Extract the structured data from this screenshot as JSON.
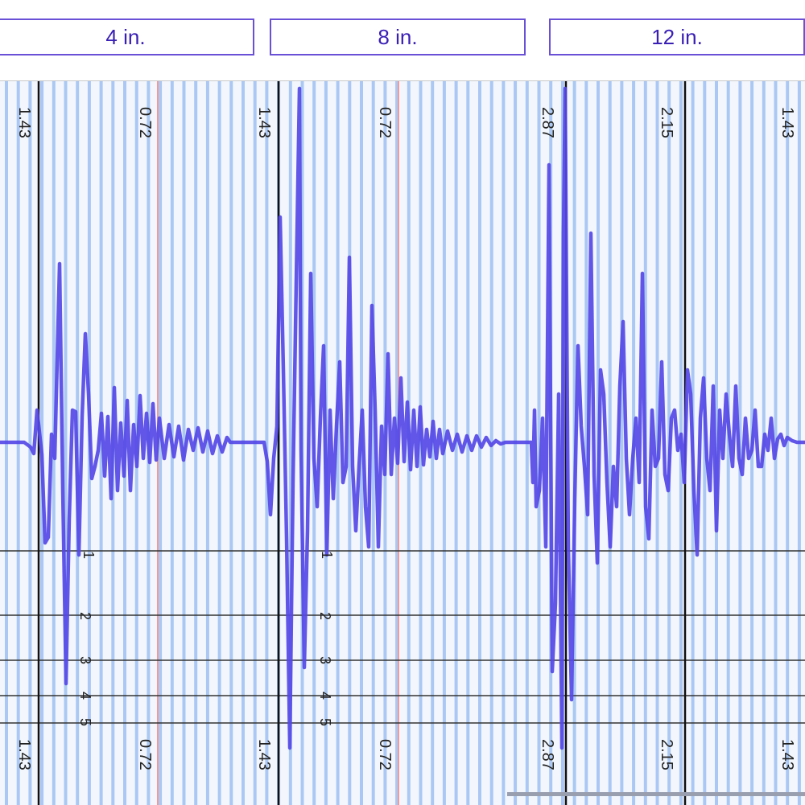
{
  "tabs": [
    {
      "label": "4 in."
    },
    {
      "label": "8 in."
    },
    {
      "label": "12 in."
    }
  ],
  "grid": {
    "top_labels": [
      "1.43",
      "0.72",
      "1.43",
      "0.72",
      "2.87",
      "2.15",
      "1.43"
    ],
    "bottom_labels": [
      "1.43",
      "0.72",
      "1.43",
      "0.72",
      "2.87",
      "2.15",
      "1.43"
    ],
    "level_numbers": [
      "1",
      "2",
      "3",
      "4",
      "5"
    ]
  },
  "colors": {
    "accent": "#6a50d6",
    "tab_text": "#3a1fb5",
    "waveform": "#5548e6",
    "stripe": "#aac8f3",
    "red_marker": "#f19a9a",
    "plot_bg": "#f3f7fd"
  },
  "waveform": {
    "name": "vibration-waveform",
    "samples": [
      [
        0,
        0
      ],
      [
        30,
        0
      ],
      [
        38,
        -6
      ],
      [
        42,
        -14
      ],
      [
        46,
        40
      ],
      [
        52,
        -15
      ],
      [
        56,
        -125
      ],
      [
        60,
        -118
      ],
      [
        64,
        10
      ],
      [
        68,
        -20
      ],
      [
        74,
        222
      ],
      [
        78,
        -60
      ],
      [
        82,
        -300
      ],
      [
        86,
        -95
      ],
      [
        90,
        40
      ],
      [
        94,
        38
      ],
      [
        98,
        -140
      ],
      [
        102,
        32
      ],
      [
        106,
        135
      ],
      [
        110,
        60
      ],
      [
        114,
        -45
      ],
      [
        118,
        -30
      ],
      [
        122,
        -10
      ],
      [
        126,
        36
      ],
      [
        130,
        -42
      ],
      [
        134,
        32
      ],
      [
        138,
        -70
      ],
      [
        142,
        68
      ],
      [
        146,
        -60
      ],
      [
        150,
        24
      ],
      [
        154,
        -42
      ],
      [
        158,
        52
      ],
      [
        162,
        -60
      ],
      [
        166,
        22
      ],
      [
        170,
        -30
      ],
      [
        174,
        58
      ],
      [
        178,
        -20
      ],
      [
        182,
        36
      ],
      [
        186,
        -25
      ],
      [
        190,
        48
      ],
      [
        194,
        -22
      ],
      [
        198,
        30
      ],
      [
        204,
        -20
      ],
      [
        210,
        22
      ],
      [
        216,
        -18
      ],
      [
        222,
        20
      ],
      [
        228,
        -22
      ],
      [
        234,
        16
      ],
      [
        240,
        -10
      ],
      [
        246,
        18
      ],
      [
        252,
        -12
      ],
      [
        258,
        14
      ],
      [
        264,
        -14
      ],
      [
        270,
        8
      ],
      [
        276,
        -12
      ],
      [
        282,
        6
      ],
      [
        286,
        0
      ],
      [
        328,
        0
      ],
      [
        332,
        -24
      ],
      [
        336,
        -90
      ],
      [
        340,
        -20
      ],
      [
        344,
        20
      ],
      [
        348,
        280
      ],
      [
        352,
        90
      ],
      [
        356,
        -120
      ],
      [
        360,
        -380
      ],
      [
        364,
        -48
      ],
      [
        368,
        200
      ],
      [
        372,
        440
      ],
      [
        374,
        -10
      ],
      [
        378,
        -280
      ],
      [
        382,
        -110
      ],
      [
        386,
        210
      ],
      [
        390,
        -20
      ],
      [
        394,
        -80
      ],
      [
        398,
        30
      ],
      [
        402,
        120
      ],
      [
        406,
        -140
      ],
      [
        410,
        40
      ],
      [
        414,
        -70
      ],
      [
        418,
        20
      ],
      [
        422,
        100
      ],
      [
        426,
        -50
      ],
      [
        430,
        -30
      ],
      [
        434,
        230
      ],
      [
        438,
        -30
      ],
      [
        442,
        -110
      ],
      [
        446,
        -30
      ],
      [
        450,
        40
      ],
      [
        454,
        -80
      ],
      [
        458,
        -130
      ],
      [
        462,
        170
      ],
      [
        466,
        40
      ],
      [
        470,
        -130
      ],
      [
        474,
        20
      ],
      [
        478,
        -40
      ],
      [
        482,
        110
      ],
      [
        486,
        -40
      ],
      [
        490,
        30
      ],
      [
        494,
        -26
      ],
      [
        498,
        80
      ],
      [
        502,
        -24
      ],
      [
        506,
        50
      ],
      [
        510,
        -34
      ],
      [
        514,
        40
      ],
      [
        518,
        -30
      ],
      [
        522,
        44
      ],
      [
        526,
        -28
      ],
      [
        530,
        16
      ],
      [
        534,
        -18
      ],
      [
        538,
        26
      ],
      [
        542,
        -20
      ],
      [
        546,
        16
      ],
      [
        550,
        -14
      ],
      [
        556,
        14
      ],
      [
        562,
        -10
      ],
      [
        568,
        10
      ],
      [
        574,
        -12
      ],
      [
        580,
        8
      ],
      [
        586,
        -10
      ],
      [
        592,
        8
      ],
      [
        598,
        -6
      ],
      [
        604,
        6
      ],
      [
        610,
        -4
      ],
      [
        616,
        2
      ],
      [
        622,
        -2
      ],
      [
        628,
        0
      ],
      [
        660,
        0
      ],
      [
        662,
        -50
      ],
      [
        664,
        40
      ],
      [
        666,
        -80
      ],
      [
        670,
        -60
      ],
      [
        674,
        30
      ],
      [
        678,
        -130
      ],
      [
        682,
        345
      ],
      [
        686,
        -285
      ],
      [
        690,
        -200
      ],
      [
        694,
        60
      ],
      [
        698,
        -380
      ],
      [
        700,
        260
      ],
      [
        702,
        440
      ],
      [
        706,
        -130
      ],
      [
        710,
        -320
      ],
      [
        714,
        -70
      ],
      [
        718,
        120
      ],
      [
        722,
        20
      ],
      [
        726,
        -30
      ],
      [
        730,
        -90
      ],
      [
        734,
        260
      ],
      [
        738,
        -40
      ],
      [
        742,
        -150
      ],
      [
        746,
        90
      ],
      [
        750,
        60
      ],
      [
        754,
        -50
      ],
      [
        758,
        -130
      ],
      [
        762,
        -30
      ],
      [
        766,
        -80
      ],
      [
        770,
        70
      ],
      [
        774,
        150
      ],
      [
        778,
        -20
      ],
      [
        782,
        -90
      ],
      [
        786,
        -20
      ],
      [
        790,
        30
      ],
      [
        794,
        -50
      ],
      [
        798,
        210
      ],
      [
        802,
        -80
      ],
      [
        806,
        -120
      ],
      [
        810,
        40
      ],
      [
        814,
        -30
      ],
      [
        818,
        -20
      ],
      [
        822,
        100
      ],
      [
        826,
        -40
      ],
      [
        830,
        -60
      ],
      [
        834,
        30
      ],
      [
        838,
        40
      ],
      [
        842,
        -10
      ],
      [
        846,
        10
      ],
      [
        850,
        -50
      ],
      [
        854,
        90
      ],
      [
        858,
        60
      ],
      [
        862,
        -60
      ],
      [
        866,
        -140
      ],
      [
        870,
        30
      ],
      [
        874,
        80
      ],
      [
        878,
        -20
      ],
      [
        882,
        -60
      ],
      [
        886,
        70
      ],
      [
        890,
        -110
      ],
      [
        894,
        40
      ],
      [
        898,
        -20
      ],
      [
        902,
        60
      ],
      [
        906,
        10
      ],
      [
        910,
        -30
      ],
      [
        914,
        70
      ],
      [
        918,
        -20
      ],
      [
        922,
        -40
      ],
      [
        926,
        30
      ],
      [
        930,
        -20
      ],
      [
        934,
        -10
      ],
      [
        938,
        40
      ],
      [
        942,
        -30
      ],
      [
        946,
        -30
      ],
      [
        950,
        10
      ],
      [
        954,
        -10
      ],
      [
        958,
        30
      ],
      [
        962,
        -20
      ],
      [
        966,
        4
      ],
      [
        970,
        10
      ],
      [
        974,
        -4
      ],
      [
        978,
        6
      ],
      [
        984,
        2
      ],
      [
        990,
        0
      ],
      [
        1000,
        0
      ]
    ]
  }
}
